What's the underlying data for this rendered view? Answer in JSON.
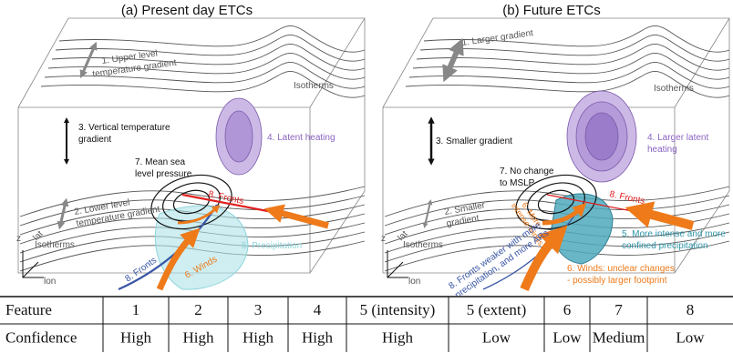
{
  "panels": [
    {
      "title": "(a) Present day ETCs",
      "labels": {
        "upper": [
          "1. Upper level",
          "temperature gradient"
        ],
        "isotherms_upper": "Isotherms",
        "vertical": [
          "3. Vertical temperature",
          "gradient"
        ],
        "latent": "4. Latent heating",
        "mslp": [
          "7. Mean sea",
          "level pressure"
        ],
        "fronts_red": "8. Fronts",
        "lower": [
          "2. Lower level",
          "temperature gradient"
        ],
        "isotherms_lower": "Isotherms",
        "precip": "5. Precipitation",
        "fronts_blue": "8. Fronts",
        "winds": "6. Winds"
      },
      "axes": [
        "z",
        "lat",
        "lon"
      ]
    },
    {
      "title": "(b) Future ETCs",
      "labels": {
        "upper": [
          "1. Larger gradient"
        ],
        "isotherms_upper": "Isotherms",
        "vertical": [
          "3. Smaller gradient"
        ],
        "latent": [
          "4. Larger latent",
          "heating"
        ],
        "mslp": [
          "7. No change",
          "to MSLP"
        ],
        "fronts_red": "8. Fronts",
        "lower": [
          "2. Smaller",
          "gradient"
        ],
        "winds_small": [
          "6. More",
          "intense winds"
        ],
        "isotherms_lower": "Isotherms",
        "precip": [
          "5. More intense and more",
          "confined precipitation"
        ],
        "fronts_blue": [
          "8. Fronts weaker with more",
          "precipitation, and more ARs"
        ],
        "winds": [
          "6. Winds: unclear changes",
          "- possibly larger footprint"
        ]
      },
      "axes": [
        "z",
        "lat",
        "lon"
      ]
    }
  ],
  "table": {
    "rows": [
      [
        "Feature",
        "1",
        "2",
        "3",
        "4",
        "5 (intensity)",
        "5 (extent)",
        "6",
        "7",
        "8"
      ],
      [
        "Confidence",
        "High",
        "High",
        "High",
        "High",
        "High",
        "Low",
        "Low",
        "Medium",
        "Low"
      ]
    ]
  }
}
